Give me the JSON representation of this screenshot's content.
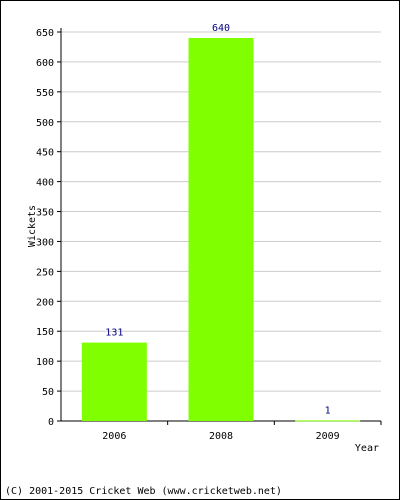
{
  "chart_data": {
    "type": "bar",
    "categories": [
      "2006",
      "2008",
      "2009"
    ],
    "values": [
      131,
      640,
      1
    ],
    "data_labels": [
      "131",
      "640",
      "1"
    ],
    "xlabel": "Year",
    "ylabel": "Wickets",
    "ylim": [
      0,
      650
    ],
    "yticks": [
      0,
      50,
      100,
      150,
      200,
      250,
      300,
      350,
      400,
      450,
      500,
      550,
      600,
      650
    ],
    "grid": true,
    "bar_color": "#80ff00",
    "label_color": "#000080",
    "grid_color": "#cccccc"
  },
  "footer": {
    "copyright": "(C) 2001-2015 Cricket Web (www.cricketweb.net)"
  }
}
